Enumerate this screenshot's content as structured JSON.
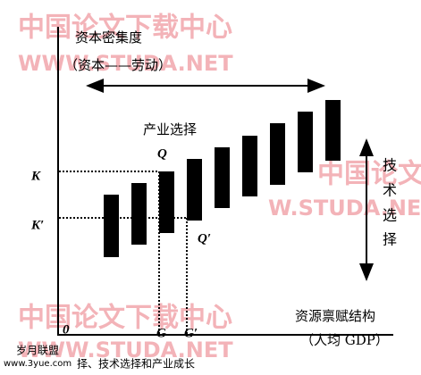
{
  "watermarks": {
    "top_cn": "中国论文下载中心",
    "top_url": "WWW.STUDA.NET",
    "right_cn": "中国论文下载",
    "right_url": "W.STUDA.NE",
    "bottom_cn": "中国论文下载中心",
    "bottom_url": "WWW.STUDA.NET"
  },
  "axes": {
    "y_label": "资本密集度",
    "y_unit": "（资本——劳动）",
    "x_label": "资源禀赋结构",
    "x_unit": "（人均 GDP）",
    "origin": "0"
  },
  "labels": {
    "industry_choice": "产业选择",
    "tech_choice": [
      "技",
      "术",
      "选",
      "择"
    ],
    "K": "K",
    "K_prime": "K′",
    "Q": "Q",
    "Q_prime": "Q′",
    "G": "G",
    "G_prime": "G′"
  },
  "footer": {
    "site": "岁月联盟",
    "url": "www.3yue.com",
    "caption": "择、技术选择和产业成长"
  }
}
